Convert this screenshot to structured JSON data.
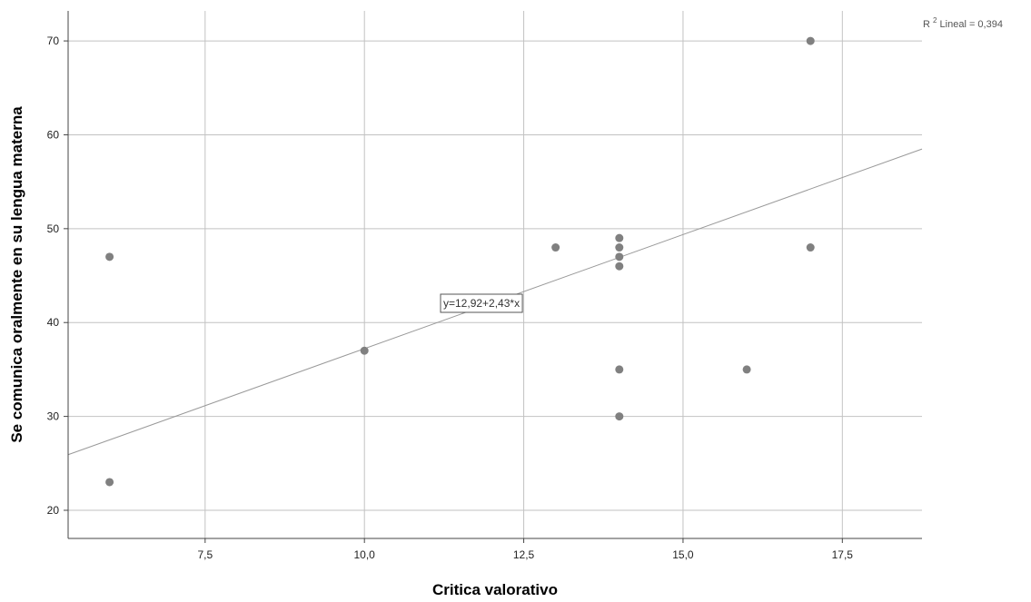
{
  "chart_data": {
    "type": "scatter",
    "title": "",
    "xlabel": "Critica valorativo",
    "ylabel": "Se comunica oralmente en su lengua materna",
    "xlim": [
      5.35,
      18.75
    ],
    "ylim": [
      17,
      73.2
    ],
    "xticks": [
      7.5,
      10.0,
      12.5,
      15.0,
      17.5
    ],
    "xtick_labels": [
      "7,5",
      "10,0",
      "12,5",
      "15,0",
      "17,5"
    ],
    "yticks": [
      20,
      30,
      40,
      50,
      60,
      70
    ],
    "ytick_labels": [
      "20",
      "30",
      "40",
      "50",
      "60",
      "70"
    ],
    "grid": true,
    "point_color": "#808080",
    "line_color": "#999999",
    "points": [
      {
        "x": 6,
        "y": 47
      },
      {
        "x": 6,
        "y": 23
      },
      {
        "x": 10,
        "y": 37
      },
      {
        "x": 13,
        "y": 48
      },
      {
        "x": 14,
        "y": 49
      },
      {
        "x": 14,
        "y": 48
      },
      {
        "x": 14,
        "y": 47
      },
      {
        "x": 14,
        "y": 46
      },
      {
        "x": 14,
        "y": 35
      },
      {
        "x": 14,
        "y": 30
      },
      {
        "x": 16,
        "y": 35
      },
      {
        "x": 17,
        "y": 70
      },
      {
        "x": 17,
        "y": 48
      }
    ],
    "fit_line": {
      "intercept": 12.92,
      "slope": 2.43
    },
    "equation_label": "y=12,92+2,43*x",
    "r2_prefix": "R",
    "r2_sup": "2",
    "r2_suffix": " Lineal = 0,394"
  }
}
